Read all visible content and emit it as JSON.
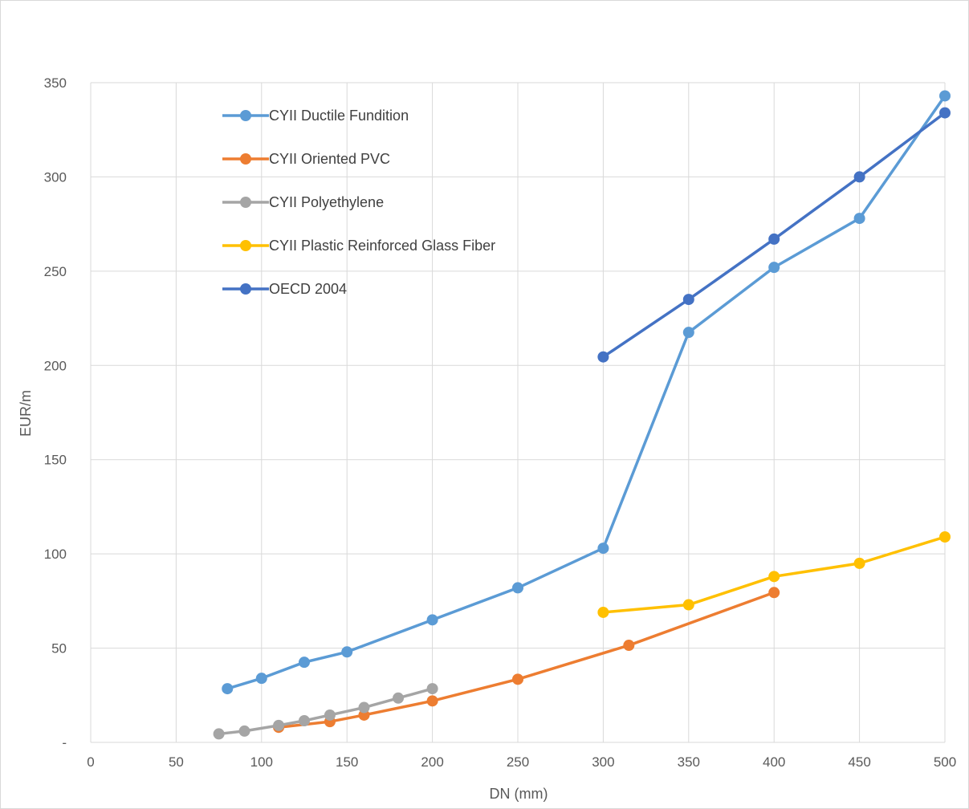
{
  "chart_data": {
    "type": "line",
    "title": "",
    "xlabel": "DN (mm)",
    "ylabel": "EUR/m",
    "xlim": [
      0,
      500
    ],
    "ylim": [
      0,
      350
    ],
    "x_ticks": [
      "0",
      "50",
      "100",
      "150",
      "200",
      "250",
      "300",
      "350",
      "400",
      "450",
      "500"
    ],
    "y_ticks": [
      "-",
      "50",
      "100",
      "150",
      "200",
      "250",
      "300",
      "350"
    ],
    "grid": true,
    "legend_position": "top-left inside plot",
    "series": [
      {
        "name": "CYII Ductile Fundition",
        "color": "#5b9bd5",
        "points": [
          [
            80,
            28.5
          ],
          [
            100,
            34
          ],
          [
            125,
            42.5
          ],
          [
            150,
            48
          ],
          [
            200,
            65
          ],
          [
            250,
            82
          ],
          [
            300,
            103
          ],
          [
            350,
            217.5
          ],
          [
            400,
            252
          ],
          [
            450,
            278
          ],
          [
            500,
            343
          ]
        ]
      },
      {
        "name": "CYII Oriented PVC",
        "color": "#ed7d31",
        "points": [
          [
            110,
            8
          ],
          [
            140,
            11
          ],
          [
            160,
            14.5
          ],
          [
            200,
            22
          ],
          [
            250,
            33.5
          ],
          [
            315,
            51.5
          ],
          [
            400,
            79.5
          ]
        ]
      },
      {
        "name": "CYII Polyethylene",
        "color": "#a5a5a5",
        "points": [
          [
            75,
            4.5
          ],
          [
            90,
            6
          ],
          [
            110,
            9
          ],
          [
            125,
            11.5
          ],
          [
            140,
            14.5
          ],
          [
            160,
            18.5
          ],
          [
            180,
            23.5
          ],
          [
            200,
            28.5
          ]
        ]
      },
      {
        "name": "CYII Plastic Reinforced Glass Fiber",
        "color": "#ffc000",
        "points": [
          [
            300,
            69
          ],
          [
            350,
            73
          ],
          [
            400,
            88
          ],
          [
            450,
            95
          ],
          [
            500,
            109
          ]
        ]
      },
      {
        "name": "OECD 2004",
        "color": "#4472c4",
        "points": [
          [
            300,
            204.5
          ],
          [
            350,
            235
          ],
          [
            400,
            267
          ],
          [
            450,
            300
          ],
          [
            500,
            334
          ]
        ]
      }
    ]
  }
}
